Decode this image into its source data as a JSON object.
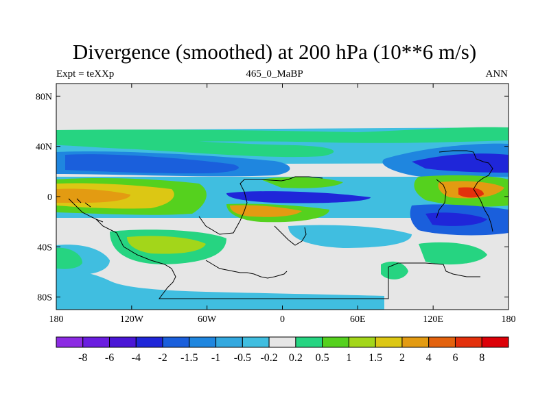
{
  "chart_data": {
    "type": "heatmap",
    "title": "Divergence (smoothed) at 200 hPa (10**6 m/s)",
    "left_string": "Expt = teXXp",
    "center_string": "465_0_MaBP",
    "right_string": "ANN",
    "x_ticks": [
      "180",
      "120W",
      "60W",
      "0",
      "60E",
      "120E",
      "180"
    ],
    "y_ticks": [
      "80N",
      "40N",
      "0",
      "40S",
      "80S"
    ],
    "x_range": [
      -180,
      180
    ],
    "y_range": [
      -90,
      90
    ],
    "colorbar": {
      "labels": [
        "-8",
        "-6",
        "-4",
        "-2",
        "-1.5",
        "-1",
        "-0.5",
        "-0.2",
        "0.2",
        "0.5",
        "1",
        "1.5",
        "2",
        "4",
        "6",
        "8"
      ],
      "colors": [
        "#8c2be3",
        "#6a1de0",
        "#4a16d6",
        "#1f26d9",
        "#1a5fdc",
        "#1f86df",
        "#33a8df",
        "#40bee0",
        "#e6e6e6",
        "#26d481",
        "#55d11e",
        "#a3d61a",
        "#dcc714",
        "#e39b12",
        "#e3620e",
        "#e3300c",
        "#dc0008"
      ]
    }
  }
}
